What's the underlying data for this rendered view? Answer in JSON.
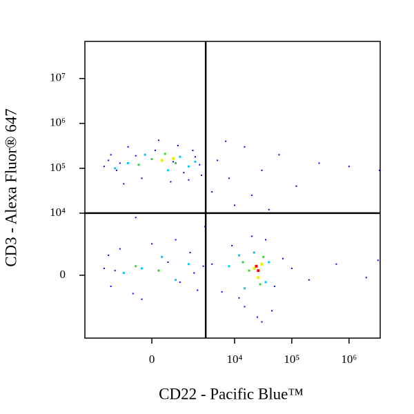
{
  "chart_data": {
    "type": "scatter",
    "xlabel": "CD22 - Pacific Blue™",
    "ylabel": "CD3 - Alexa Fluor® 647",
    "xscale": "biexponential",
    "yscale": "biexponential",
    "xlim": [
      -5300,
      3500000
    ],
    "ylim": [
      -10400,
      67000000
    ],
    "xticks": [
      0,
      {
        "value": 10000,
        "label": "10⁴"
      },
      {
        "value": 100000,
        "label": "10⁵"
      },
      {
        "value": 1000000,
        "label": "10⁶"
      }
    ],
    "yticks": [
      0,
      {
        "value": 10000,
        "label": "10⁴"
      },
      {
        "value": 100000,
        "label": "10⁵"
      },
      {
        "value": 1000000,
        "label": "10⁶"
      },
      {
        "value": 10000000,
        "label": "10⁷"
      }
    ],
    "gate": {
      "x": 3100,
      "y": 10000
    },
    "series": [
      {
        "color": "#0000ff",
        "x": [
          -2000,
          -1400,
          -800,
          -300,
          200,
          600,
          1200,
          1800,
          2400,
          -1800,
          -1000,
          100,
          900,
          1500,
          2000,
          -2400,
          -500,
          700,
          2600,
          -1200,
          5000,
          8000,
          15000,
          30000,
          60000,
          120000,
          300000,
          1000000,
          3400000,
          20000,
          7000,
          4000,
          10000,
          40000,
          3000,
          -500,
          -2400,
          -1800,
          -1200,
          -600,
          0,
          500,
          1000,
          1600,
          2200,
          2800,
          -2000,
          -300,
          800,
          1900,
          -1500,
          4000,
          6000,
          9000,
          15000,
          25000,
          35000,
          50000,
          70000,
          20000,
          12000,
          45000,
          30000,
          100000,
          200000,
          600000,
          2000000,
          3200000
        ],
        "y": [
          150000,
          90000,
          300000,
          60000,
          420000,
          50000,
          80000,
          250000,
          120000,
          200000,
          45000,
          250000,
          320000,
          55000,
          180000,
          110000,
          190000,
          140000,
          70000,
          130000,
          150000,
          60000,
          300000,
          90000,
          200000,
          40000,
          130000,
          110000,
          90000,
          25000,
          400000,
          30000,
          15000,
          12000,
          5000,
          8000,
          300,
          -500,
          1500,
          -900,
          2000,
          600,
          -300,
          1200,
          -700,
          400,
          1000,
          -1300,
          2500,
          100,
          200,
          500,
          -800,
          1800,
          -2000,
          -3500,
          2500,
          -500,
          800,
          3000,
          -1200,
          -2500,
          -4500,
          300,
          -200,
          500,
          -100,
          700
        ]
      },
      {
        "color": "#00c8ff",
        "x": [
          -800,
          1500,
          -200,
          1000,
          -1500,
          500,
          2000,
          -300,
          800,
          1500,
          -1000,
          300,
          8000,
          15000,
          22000,
          35000,
          12000,
          40000
        ],
        "y": [
          130000,
          110000,
          200000,
          180000,
          100000,
          90000,
          140000,
          300,
          -200,
          500,
          100,
          900,
          400,
          -600,
          1200,
          -300,
          1000,
          600
        ]
      },
      {
        "color": "#32d232",
        "x": [
          0,
          800,
          -400,
          400,
          200,
          -500,
          18000,
          28000,
          14000,
          32000
        ],
        "y": [
          160000,
          130000,
          120000,
          210000,
          200,
          400,
          200,
          -400,
          600,
          900
        ]
      },
      {
        "color": "#f0f000",
        "x": [
          300,
          700,
          22000,
          30000,
          26000
        ],
        "y": [
          150000,
          165000,
          300,
          500,
          -100
        ]
      },
      {
        "color": "#ff0000",
        "x": [
          26000,
          24000
        ],
        "y": [
          200,
          400
        ]
      }
    ]
  }
}
